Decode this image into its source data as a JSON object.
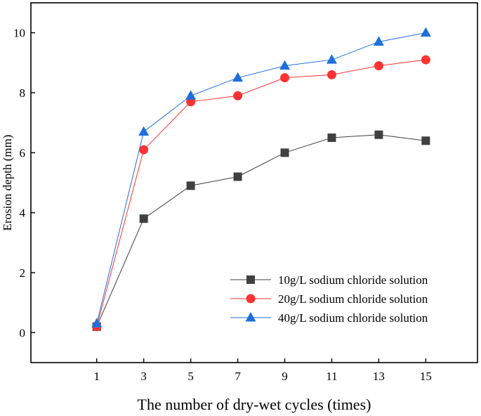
{
  "chart_data": {
    "type": "line",
    "title": "",
    "xlabel": "The number of dry-wet cycles (times)",
    "ylabel": "Erosion depth (mm)",
    "x": [
      1,
      3,
      5,
      7,
      9,
      11,
      13,
      15
    ],
    "xlim": [
      -1.8,
      17.2
    ],
    "ylim": [
      -1,
      11
    ],
    "xticks": [
      1,
      3,
      5,
      7,
      9,
      11,
      13,
      15
    ],
    "yticks": [
      0,
      2,
      4,
      6,
      8,
      10
    ],
    "grid": false,
    "legend_position": "bottom-right",
    "series": [
      {
        "name": "10g/L sodium chloride solution",
        "color": "#404040",
        "marker": "square",
        "values": [
          0.2,
          3.8,
          4.9,
          5.2,
          6.0,
          6.5,
          6.6,
          6.4
        ]
      },
      {
        "name": "20g/L sodium chloride solution",
        "color": "#ff3333",
        "marker": "circle",
        "values": [
          0.2,
          6.1,
          7.7,
          7.9,
          8.5,
          8.6,
          8.9,
          9.1
        ]
      },
      {
        "name": "40g/L sodium chloride solution",
        "color": "#1f6fdc",
        "marker": "triangle",
        "values": [
          0.3,
          6.7,
          7.9,
          8.5,
          8.9,
          9.1,
          9.7,
          10.0
        ]
      }
    ]
  }
}
